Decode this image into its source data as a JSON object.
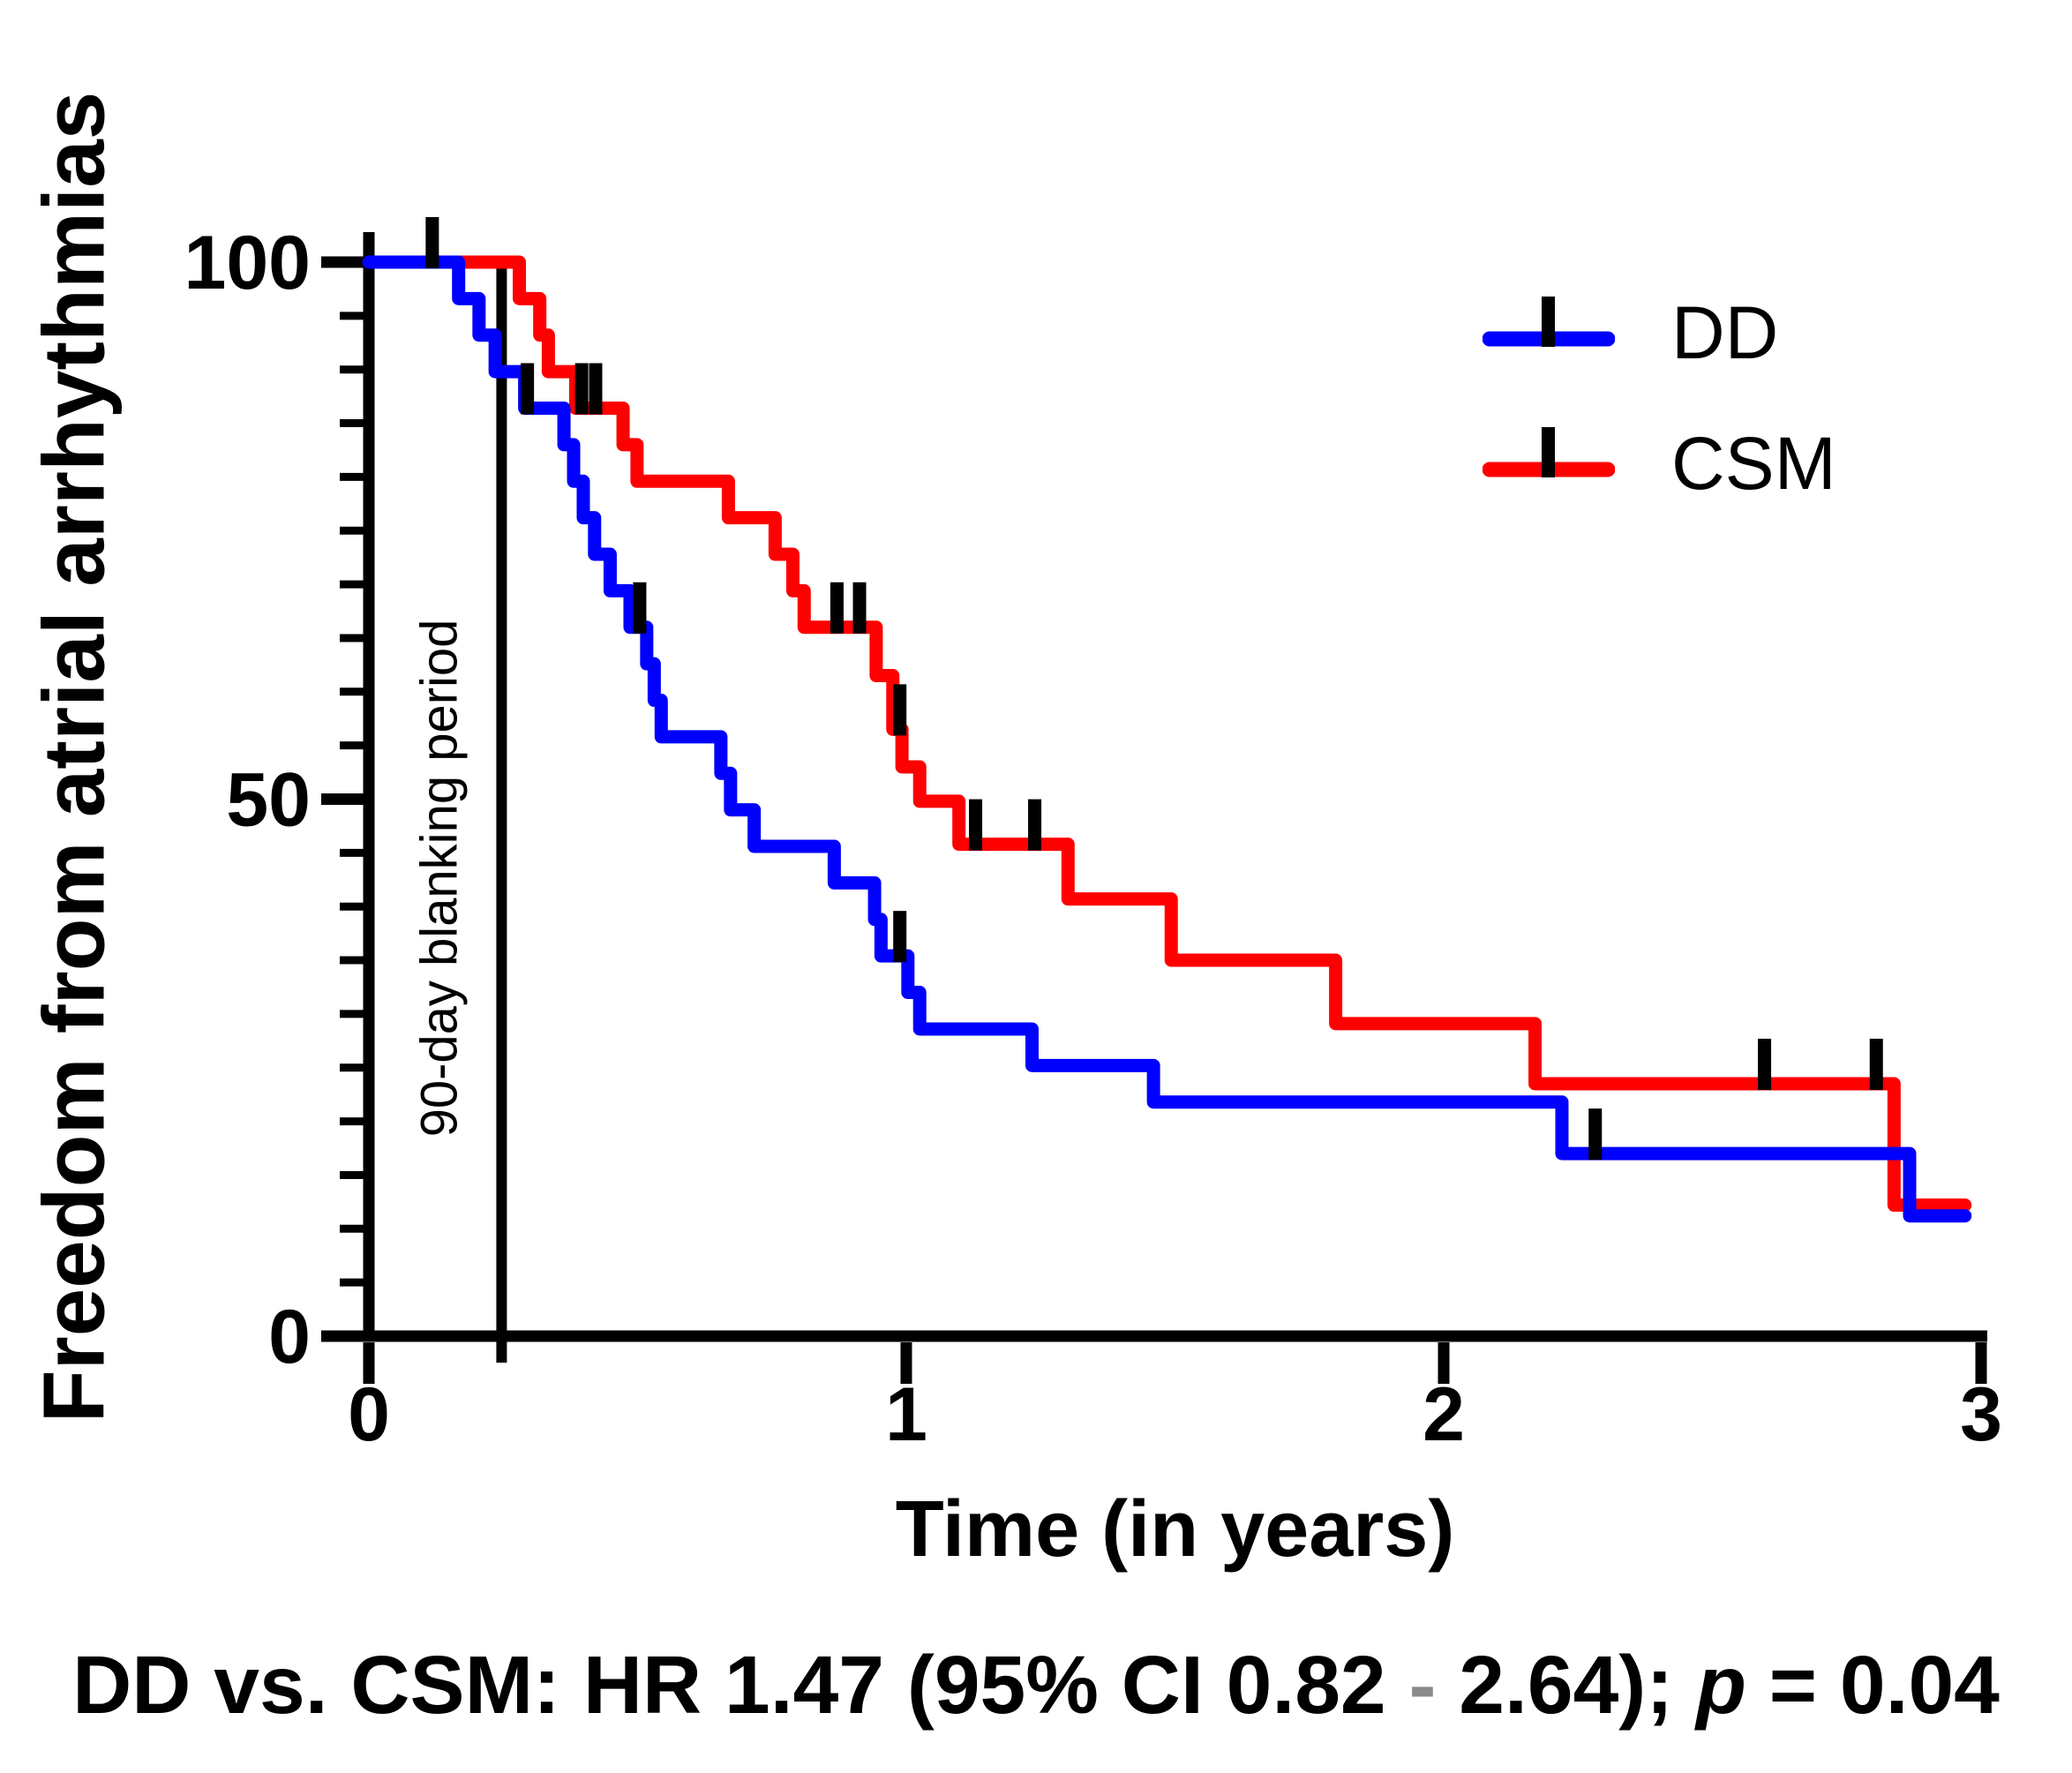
{
  "figure": {
    "y_axis_title": "Freedom from atrial arrhythmias",
    "x_axis_title": "Time (in years)",
    "blanking_label": "90-day blanking period",
    "legend": [
      {
        "label": "DD",
        "color": "#0000ff"
      },
      {
        "label": "CSM",
        "color": "#ff0000"
      }
    ],
    "annotation": {
      "full": "DD vs. CSM: HR 1.47 (95% CI 0.82 - 2.64); p = 0.04",
      "part1": "DD vs. CSM: HR 1.47 (95% CI 0.82 ",
      "dash": "-",
      "dash_color": "#8a8a8a",
      "part2": " 2.64); ",
      "p_italic": "p",
      "part3": " = 0.04"
    }
  },
  "chart_data": {
    "type": "line",
    "subtype": "kaplan-meier-step",
    "title": "",
    "xlabel": "Time (in years)",
    "ylabel": "Freedom from atrial arrhythmias",
    "xlim": [
      0,
      3
    ],
    "ylim": [
      0,
      100
    ],
    "xticks": [
      0,
      1,
      2,
      3
    ],
    "yticks": [
      0,
      50,
      100
    ],
    "y_minor_tick_step": 5,
    "grid": false,
    "legend_position": "upper-right",
    "vline": {
      "x": 0.247,
      "label": "90-day blanking period"
    },
    "annotation": "DD vs. CSM: HR 1.47 (95% CI 0.82 - 2.64); p = 0.04",
    "series": [
      {
        "name": "CSM",
        "color": "#ff0000",
        "start": [
          0,
          100
        ],
        "end_x": 2.97,
        "steps": [
          [
            0.28,
            96.6
          ],
          [
            0.318,
            93.2
          ],
          [
            0.334,
            89.8
          ],
          [
            0.385,
            86.4
          ],
          [
            0.473,
            83.0
          ],
          [
            0.499,
            79.6
          ],
          [
            0.669,
            76.2
          ],
          [
            0.756,
            72.8
          ],
          [
            0.789,
            69.4
          ],
          [
            0.81,
            66.0
          ],
          [
            0.944,
            61.5
          ],
          [
            0.975,
            56.5
          ],
          [
            0.992,
            53.0
          ],
          [
            1.025,
            49.8
          ],
          [
            1.098,
            45.8
          ],
          [
            1.301,
            40.7
          ],
          [
            1.493,
            35.0
          ],
          [
            1.799,
            29.1
          ],
          [
            2.17,
            23.5
          ],
          [
            2.838,
            12.2
          ]
        ],
        "censors": [
          [
            0.396,
            86.4
          ],
          [
            0.422,
            86.4
          ],
          [
            0.871,
            66.0
          ],
          [
            0.913,
            66.0
          ],
          [
            0.988,
            56.5
          ],
          [
            1.129,
            45.8
          ],
          [
            1.239,
            45.8
          ],
          [
            2.597,
            23.5
          ],
          [
            2.805,
            23.5
          ]
        ]
      },
      {
        "name": "DD",
        "color": "#0000ff",
        "start": [
          0,
          100
        ],
        "end_x": 2.97,
        "steps": [
          [
            0.167,
            96.6
          ],
          [
            0.205,
            93.2
          ],
          [
            0.235,
            89.8
          ],
          [
            0.29,
            86.4
          ],
          [
            0.363,
            83.0
          ],
          [
            0.381,
            79.6
          ],
          [
            0.399,
            76.2
          ],
          [
            0.42,
            72.8
          ],
          [
            0.449,
            69.4
          ],
          [
            0.486,
            66.0
          ],
          [
            0.517,
            62.6
          ],
          [
            0.531,
            59.2
          ],
          [
            0.544,
            55.8
          ],
          [
            0.655,
            52.4
          ],
          [
            0.673,
            49.0
          ],
          [
            0.717,
            45.6
          ],
          [
            0.866,
            42.2
          ],
          [
            0.941,
            38.8
          ],
          [
            0.953,
            35.4
          ],
          [
            1.003,
            32.0
          ],
          [
            1.025,
            28.6
          ],
          [
            1.234,
            25.2
          ],
          [
            1.46,
            21.8
          ],
          [
            2.22,
            17.0
          ],
          [
            2.867,
            11.2
          ]
        ],
        "censors": [
          [
            0.118,
            100
          ],
          [
            0.295,
            86.4
          ],
          [
            0.504,
            66.0
          ],
          [
            0.988,
            35.4
          ],
          [
            2.282,
            17.0
          ]
        ]
      }
    ]
  }
}
